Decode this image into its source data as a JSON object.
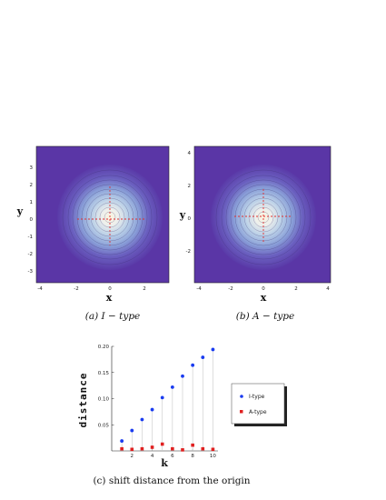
{
  "panels": [
    {
      "caption": "(a) I − type",
      "xlabel": "x",
      "ylabel": "y",
      "x_ticks": [
        "-4",
        "-2",
        "0",
        "2"
      ],
      "y_ticks": [
        "3",
        "2",
        "1",
        "0",
        "-1",
        "-2",
        "-3"
      ],
      "xlim": [
        -4.5,
        3.5
      ],
      "ylim": [
        -3.5,
        4.2
      ]
    },
    {
      "caption": "(b) A − type",
      "xlabel": "x",
      "ylabel": "y",
      "x_ticks": [
        "-4",
        "-2",
        "0",
        "2",
        "4"
      ],
      "y_ticks": [
        "4",
        "2",
        "0",
        "-2"
      ],
      "xlim": [
        -4.2,
        4.2
      ],
      "ylim": [
        -4.2,
        4.2
      ]
    }
  ],
  "chart_data": {
    "type": "scatter",
    "caption": "(c) shift distance from the origin",
    "xlabel": "k",
    "ylabel": "distance",
    "xlim": [
      0,
      10.5
    ],
    "ylim": [
      0,
      0.2
    ],
    "x_ticks": [
      "2",
      "4",
      "6",
      "8",
      "10"
    ],
    "y_ticks": [
      "0.05",
      "0.10",
      "0.15",
      "0.20"
    ],
    "legend_position": "right",
    "series": [
      {
        "name": "I-type",
        "color": "#1a3cf0",
        "x": [
          1,
          2,
          3,
          4,
          5,
          6,
          7,
          8,
          9,
          10
        ],
        "y": [
          0.019,
          0.039,
          0.06,
          0.079,
          0.102,
          0.122,
          0.143,
          0.164,
          0.179,
          0.194
        ]
      },
      {
        "name": "A-type",
        "color": "#e02020",
        "x": [
          1,
          2,
          3,
          4,
          5,
          6,
          7,
          8,
          9,
          10
        ],
        "y": [
          0.004,
          0.003,
          0.004,
          0.007,
          0.013,
          0.004,
          0.002,
          0.011,
          0.004,
          0.003
        ]
      }
    ]
  }
}
